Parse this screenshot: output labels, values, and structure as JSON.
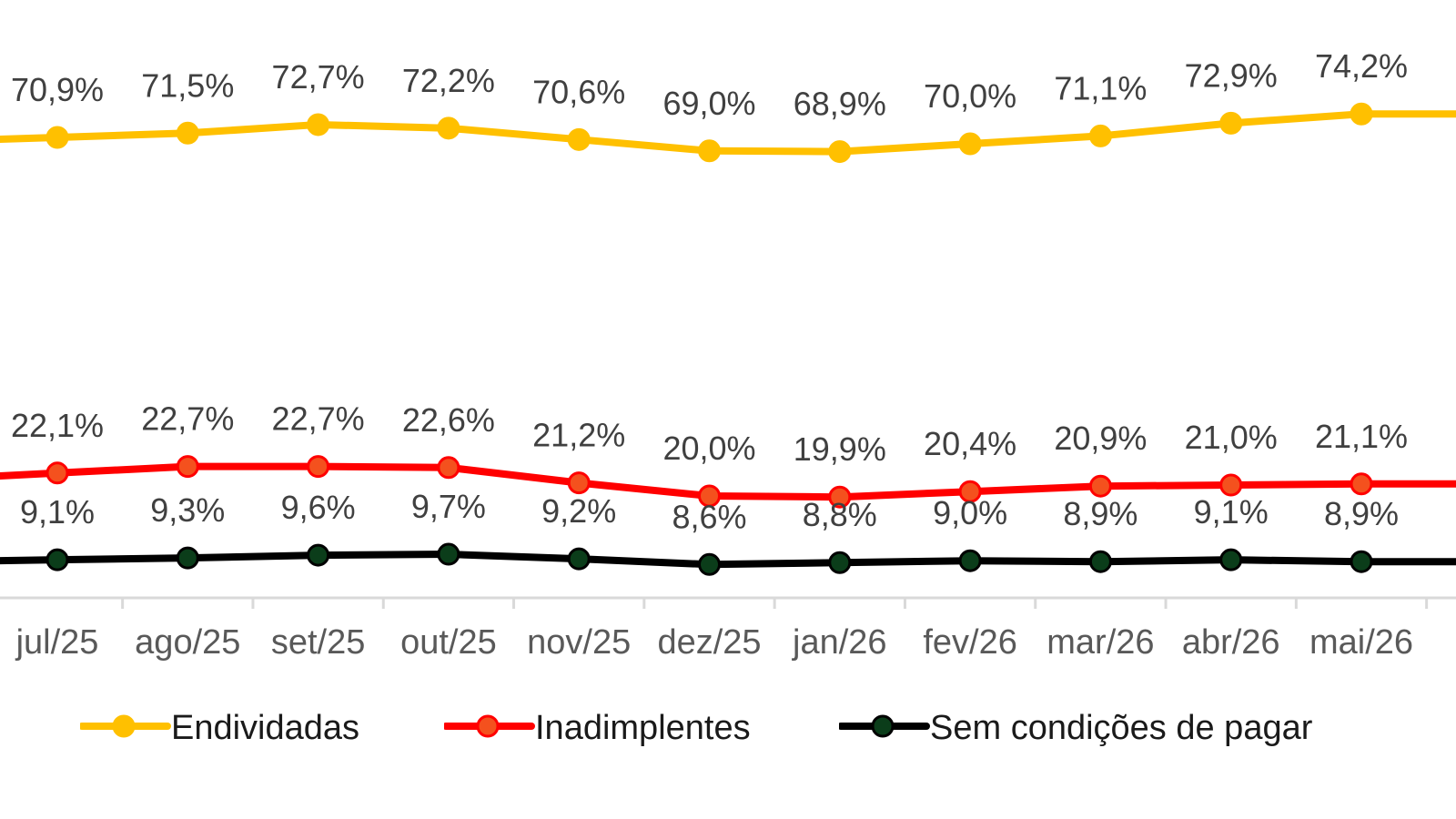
{
  "chart_data": {
    "type": "line",
    "categories": [
      "jul/25",
      "ago/25",
      "set/25",
      "out/25",
      "nov/25",
      "dez/25",
      "jan/26",
      "fev/26",
      "mar/26",
      "abr/26",
      "mai/26"
    ],
    "series": [
      {
        "name": "Endividadas",
        "color": "#FFC000",
        "marker_color": "#FFC000",
        "values": [
          70.9,
          71.5,
          72.7,
          72.2,
          70.6,
          69.0,
          68.9,
          70.0,
          71.1,
          72.9,
          74.2
        ],
        "labels": [
          "70,9%",
          "71,5%",
          "72,7%",
          "72,2%",
          "70,6%",
          "69,0%",
          "68,9%",
          "70,0%",
          "71,1%",
          "72,9%",
          "74,2%"
        ]
      },
      {
        "name": "Inadimplentes",
        "color": "#FF0000",
        "marker_color": "#F4511E",
        "values": [
          22.1,
          22.7,
          22.7,
          22.6,
          21.2,
          20.0,
          19.9,
          20.4,
          20.9,
          21.0,
          21.1
        ],
        "labels": [
          "22,1%",
          "22,7%",
          "22,7%",
          "22,6%",
          "21,2%",
          "20,0%",
          "19,9%",
          "20,4%",
          "20,9%",
          "21,0%",
          "21,1%"
        ]
      },
      {
        "name": "Sem condições de pagar",
        "color": "#000000",
        "marker_color": "#0B3D1A",
        "values": [
          9.1,
          9.3,
          9.6,
          9.7,
          9.2,
          8.6,
          8.8,
          9.0,
          8.9,
          9.1,
          8.9
        ],
        "labels": [
          "9,1%",
          "9,3%",
          "9,6%",
          "9,7%",
          "9,2%",
          "8,6%",
          "8,8%",
          "9,0%",
          "8,9%",
          "9,1%",
          "8,9%"
        ]
      }
    ],
    "legend_position": "bottom",
    "grid": false
  }
}
